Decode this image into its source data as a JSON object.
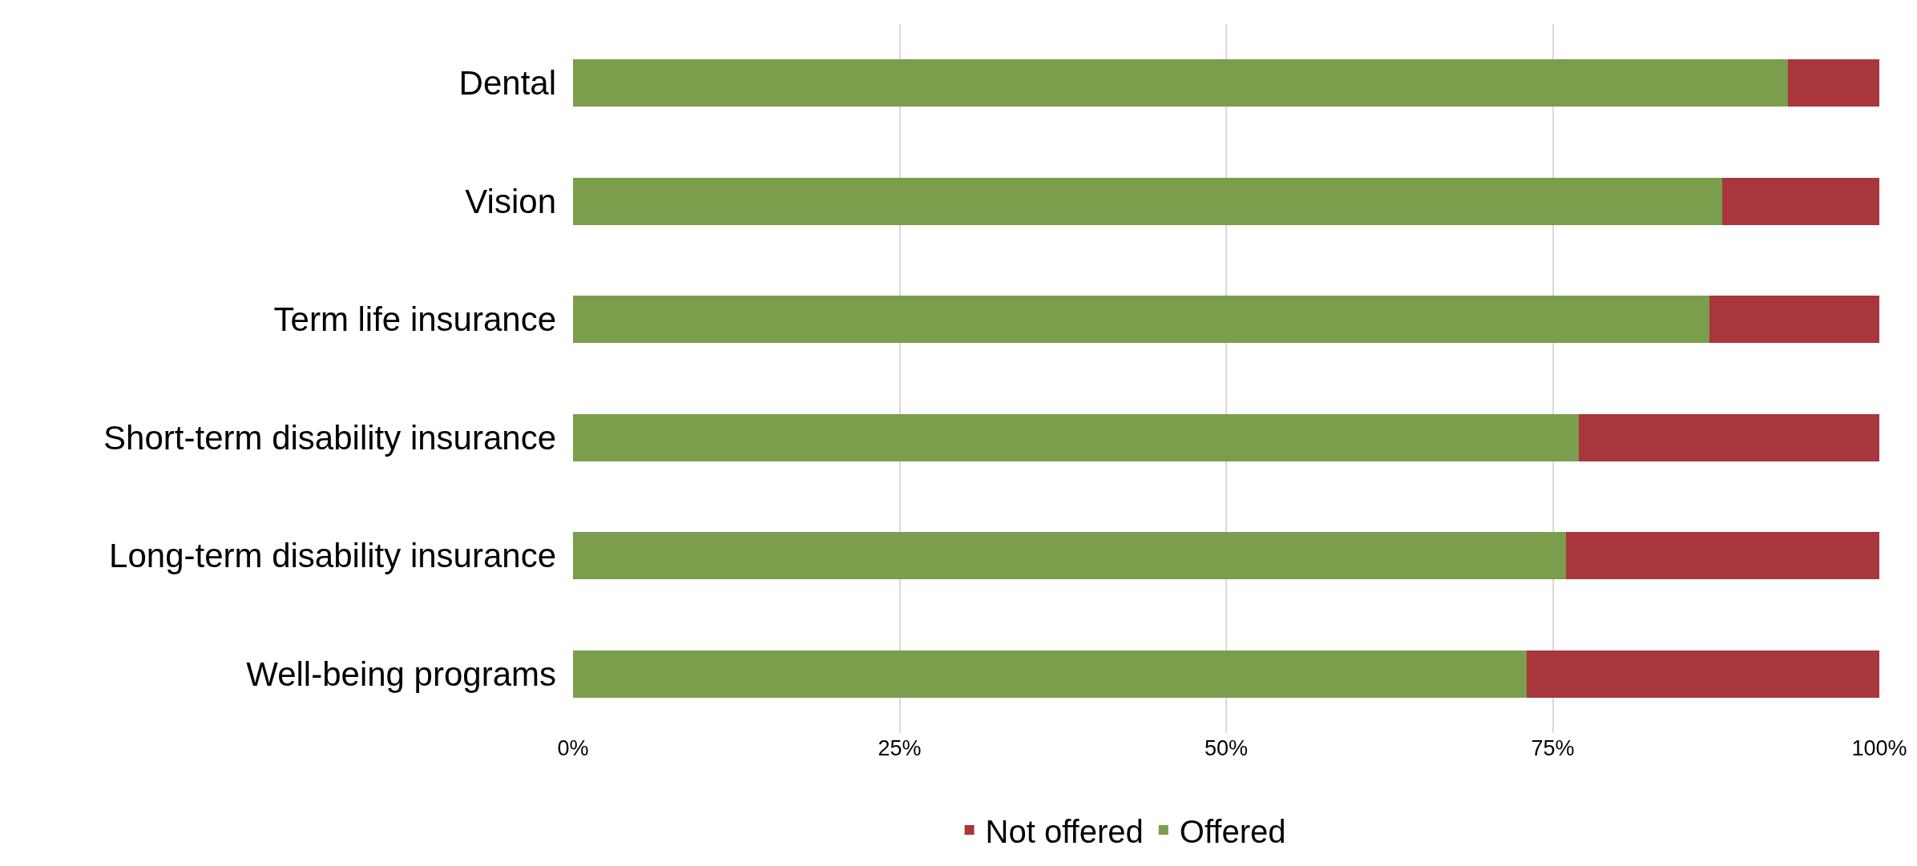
{
  "chart_data": {
    "type": "bar",
    "orientation": "horizontal",
    "stacked": true,
    "categories": [
      "Dental",
      "Vision",
      "Term life insurance",
      "Short-term disability insurance",
      "Long-term disability insurance",
      "Well-being programs"
    ],
    "series": [
      {
        "name": "Offered",
        "color": "#7a9e4b",
        "values": [
          93,
          88,
          87,
          77,
          76,
          73
        ]
      },
      {
        "name": "Not offered",
        "color": "#a8363c",
        "values": [
          7,
          12,
          13,
          23,
          24,
          27
        ]
      }
    ],
    "xlim": [
      0,
      100
    ],
    "xticks": [
      {
        "value": 0,
        "label": "0%"
      },
      {
        "value": 25,
        "label": "25%"
      },
      {
        "value": 50,
        "label": "50%"
      },
      {
        "value": 75,
        "label": "75%"
      },
      {
        "value": 100,
        "label": "100%"
      }
    ],
    "grid": "x",
    "legend": "bottom"
  }
}
